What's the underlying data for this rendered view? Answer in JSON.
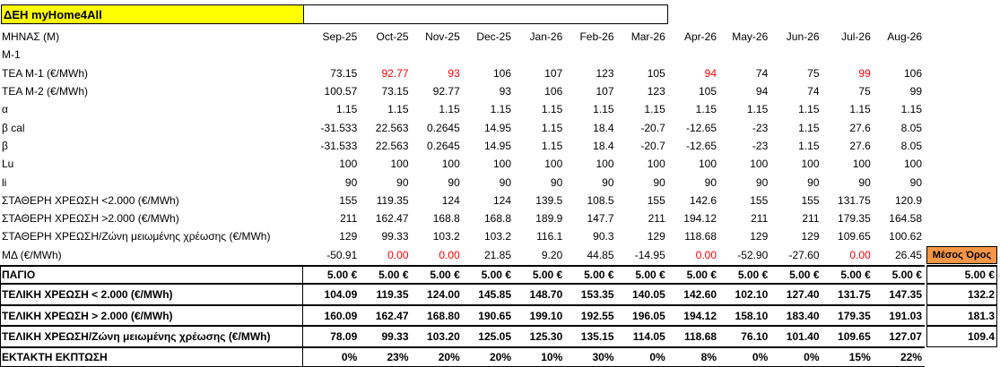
{
  "title": "ΔΕΗ myHome4All",
  "header": {
    "label": "ΜΗΝΑΣ (Μ)",
    "months": [
      "Sep-25",
      "Oct-25",
      "Nov-25",
      "Dec-25",
      "Jan-26",
      "Feb-26",
      "Mar-26",
      "Apr-26",
      "May-26",
      "Jun-26",
      "Jul-26",
      "Aug-26"
    ]
  },
  "highlight_color": "#ff0000",
  "rows": [
    {
      "label": "Μ-1"
    },
    {
      "label": "ΤΕΑ Μ-1 (€/MWh)",
      "values": [
        "73.15",
        "92.77",
        "93",
        "106",
        "107",
        "123",
        "105",
        "94",
        "74",
        "75",
        "99",
        "106"
      ],
      "highlighted": [
        1,
        2,
        7,
        10
      ]
    },
    {
      "label": "ΤΕΑ Μ-2 (€/MWh)",
      "values": [
        "100.57",
        "73.15",
        "92.77",
        "93",
        "106",
        "107",
        "123",
        "105",
        "94",
        "74",
        "75",
        "99"
      ]
    },
    {
      "label": "α",
      "values": [
        "1.15",
        "1.15",
        "1.15",
        "1.15",
        "1.15",
        "1.15",
        "1.15",
        "1.15",
        "1.15",
        "1.15",
        "1.15",
        "1.15"
      ]
    },
    {
      "label": "β cal",
      "values": [
        "-31.533",
        "22.563",
        "0.2645",
        "14.95",
        "1.15",
        "18.4",
        "-20.7",
        "-12.65",
        "-23",
        "1.15",
        "27.6",
        "8.05"
      ]
    },
    {
      "label": "β",
      "values": [
        "-31.533",
        "22.563",
        "0.2645",
        "14.95",
        "1.15",
        "18.4",
        "-20.7",
        "-12.65",
        "-23",
        "1.15",
        "27.6",
        "8.05"
      ]
    },
    {
      "label": "Lu",
      "values": [
        "100",
        "100",
        "100",
        "100",
        "100",
        "100",
        "100",
        "100",
        "100",
        "100",
        "100",
        "100"
      ]
    },
    {
      "label": "li",
      "values": [
        "90",
        "90",
        "90",
        "90",
        "90",
        "90",
        "90",
        "90",
        "90",
        "90",
        "90",
        "90"
      ]
    },
    {
      "label": "ΣΤΑΘΕΡΗ ΧΡΕΩΣΗ <2.000 (€/MWh)",
      "values": [
        "155",
        "119.35",
        "124",
        "124",
        "139.5",
        "108.5",
        "155",
        "142.6",
        "155",
        "155",
        "131.75",
        "120.9"
      ]
    },
    {
      "label": "ΣΤΑΘΕΡΗ ΧΡΕΩΣΗ >2.000 (€/MWh)",
      "values": [
        "211",
        "162.47",
        "168.8",
        "168.8",
        "189.9",
        "147.7",
        "211",
        "194.12",
        "211",
        "211",
        "179.35",
        "164.58"
      ]
    },
    {
      "label": "ΣΤΑΘΕΡΗ ΧΡΕΩΣΗ/Ζώνη μειωμένης χρέωσης (€/MWh)",
      "values": [
        "129",
        "99.33",
        "103.2",
        "103.2",
        "116.1",
        "90.3",
        "129",
        "118.68",
        "129",
        "129",
        "109.65",
        "100.62"
      ]
    },
    {
      "label": "ΜΔ (€/MWh)",
      "values": [
        "-50.91",
        "0.00",
        "0.00",
        "21.85",
        "9.20",
        "44.85",
        "-14.95",
        "0.00",
        "-52.90",
        "-27.60",
        "0.00",
        "26.45"
      ],
      "highlighted": [
        1,
        2,
        7,
        10
      ]
    }
  ],
  "average_header": "Μέσος Όρος",
  "totals": [
    {
      "label": "ΠΑΓΙΟ",
      "values": [
        "5.00 €",
        "5.00 €",
        "5.00 €",
        "5.00 €",
        "5.00 €",
        "5.00 €",
        "5.00 €",
        "5.00 €",
        "5.00 €",
        "5.00 €",
        "5.00 €",
        "5.00 €"
      ],
      "average": "5.00 €"
    },
    {
      "label": "ΤΕΛΙΚΗ ΧΡΕΩΣΗ < 2.000 (€/MWh)",
      "values": [
        "104.09",
        "119.35",
        "124.00",
        "145.85",
        "148.70",
        "153.35",
        "140.05",
        "142.60",
        "102.10",
        "127.40",
        "131.75",
        "147.35"
      ],
      "average": "132.2"
    },
    {
      "label": "ΤΕΛΙΚΗ ΧΡΕΩΣΗ > 2.000  (€/MWh)",
      "values": [
        "160.09",
        "162.47",
        "168.80",
        "190.65",
        "199.10",
        "192.55",
        "196.05",
        "194.12",
        "158.10",
        "183.40",
        "179.35",
        "191.03"
      ],
      "average": "181.3"
    },
    {
      "label": "ΤΕΛΙΚΗ ΧΡΕΩΣΗ/Ζώνη μειωμένης χρέωσης (€/MWh)",
      "values": [
        "78.09",
        "99.33",
        "103.20",
        "125.05",
        "125.30",
        "135.15",
        "114.05",
        "118.68",
        "76.10",
        "101.40",
        "109.65",
        "127.07"
      ],
      "average": "109.4"
    },
    {
      "label": "ΕΚΤΑΚΤΗ ΕΚΠΤΩΣΗ",
      "values": [
        "0%",
        "23%",
        "20%",
        "20%",
        "10%",
        "30%",
        "0%",
        "8%",
        "0%",
        "0%",
        "15%",
        "22%"
      ]
    }
  ]
}
